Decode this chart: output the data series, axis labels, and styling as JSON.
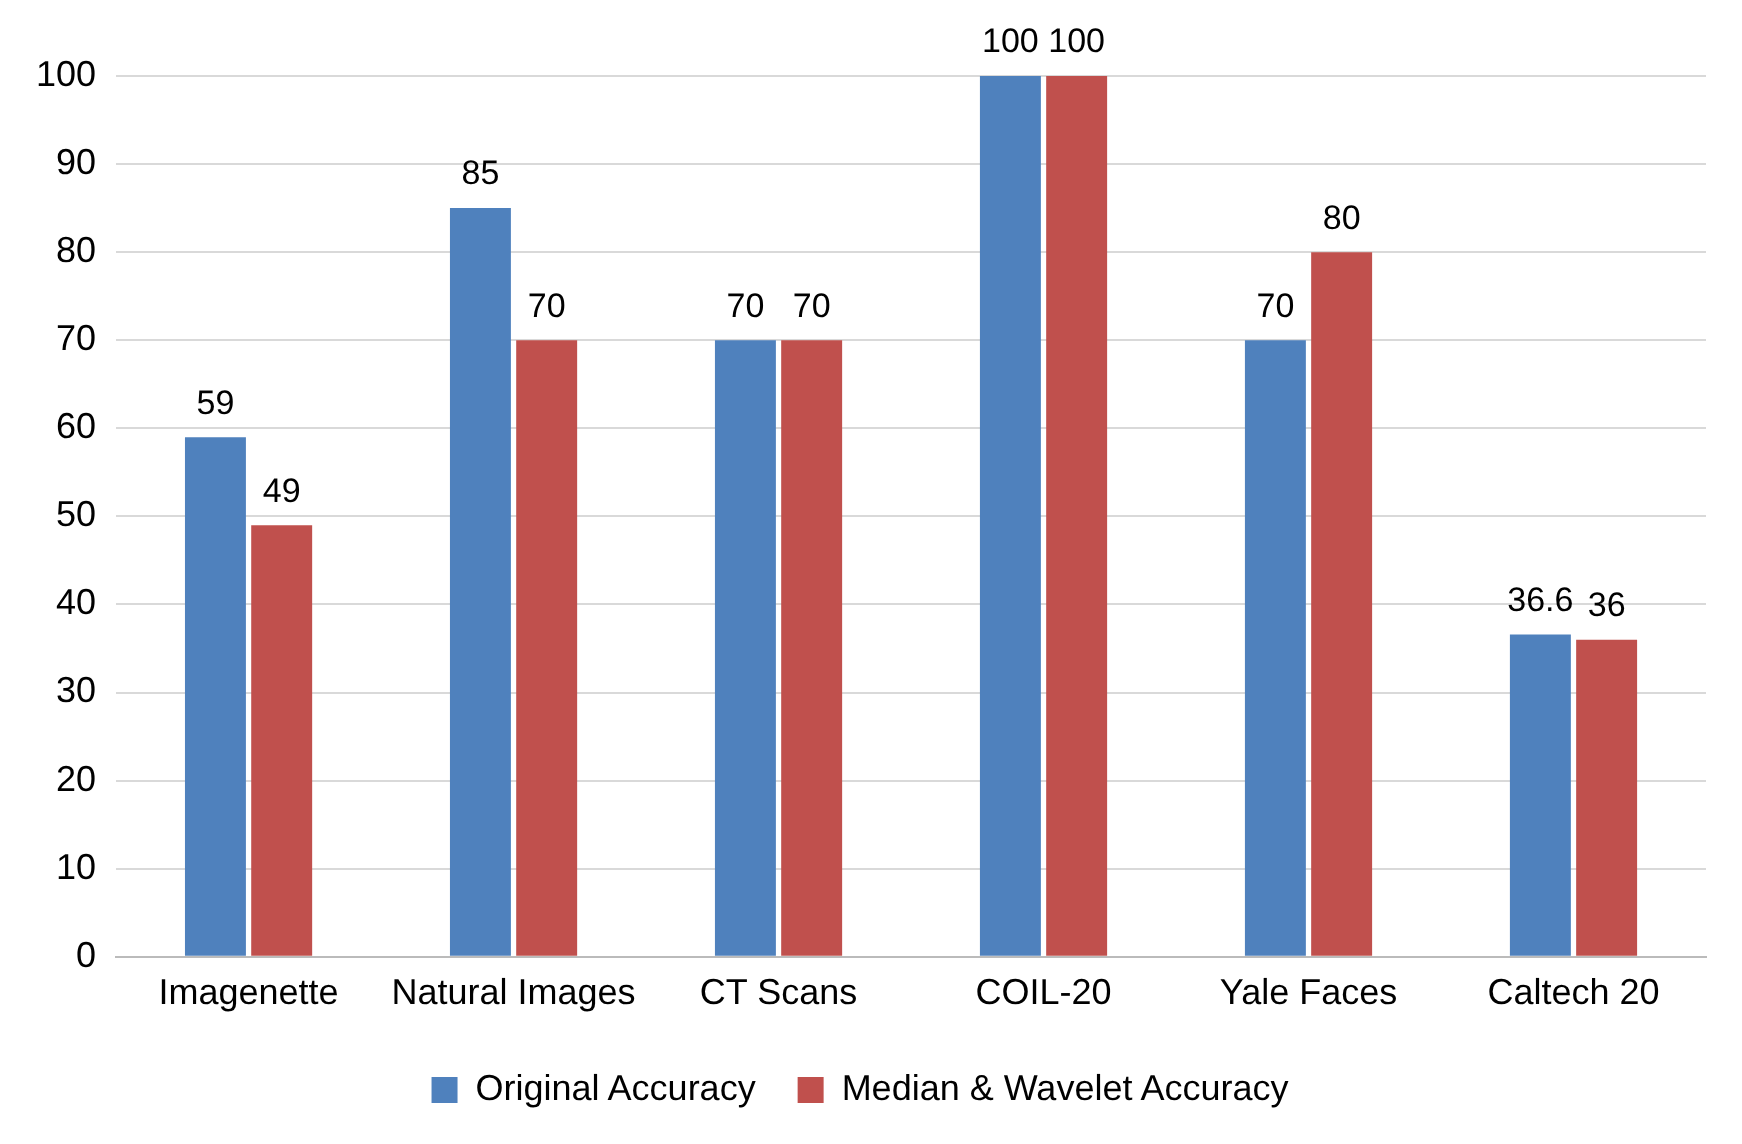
{
  "chart_data": {
    "type": "bar",
    "categories": [
      "Imagenette",
      "Natural Images",
      "CT Scans",
      "COIL-20",
      "Yale Faces",
      "Caltech 20"
    ],
    "series": [
      {
        "name": "Original Accuracy",
        "color": "#4f81bd",
        "values": [
          59,
          85,
          70,
          100,
          70,
          36.6
        ]
      },
      {
        "name": "Median & Wavelet Accuracy",
        "color": "#c0504d",
        "values": [
          49,
          70,
          70,
          100,
          80,
          36
        ]
      }
    ],
    "ylim": [
      0,
      100
    ],
    "yticks": [
      0,
      10,
      20,
      30,
      40,
      50,
      60,
      70,
      80,
      90,
      100
    ],
    "grid": "y",
    "legend": "bottom",
    "data_labels": true
  }
}
